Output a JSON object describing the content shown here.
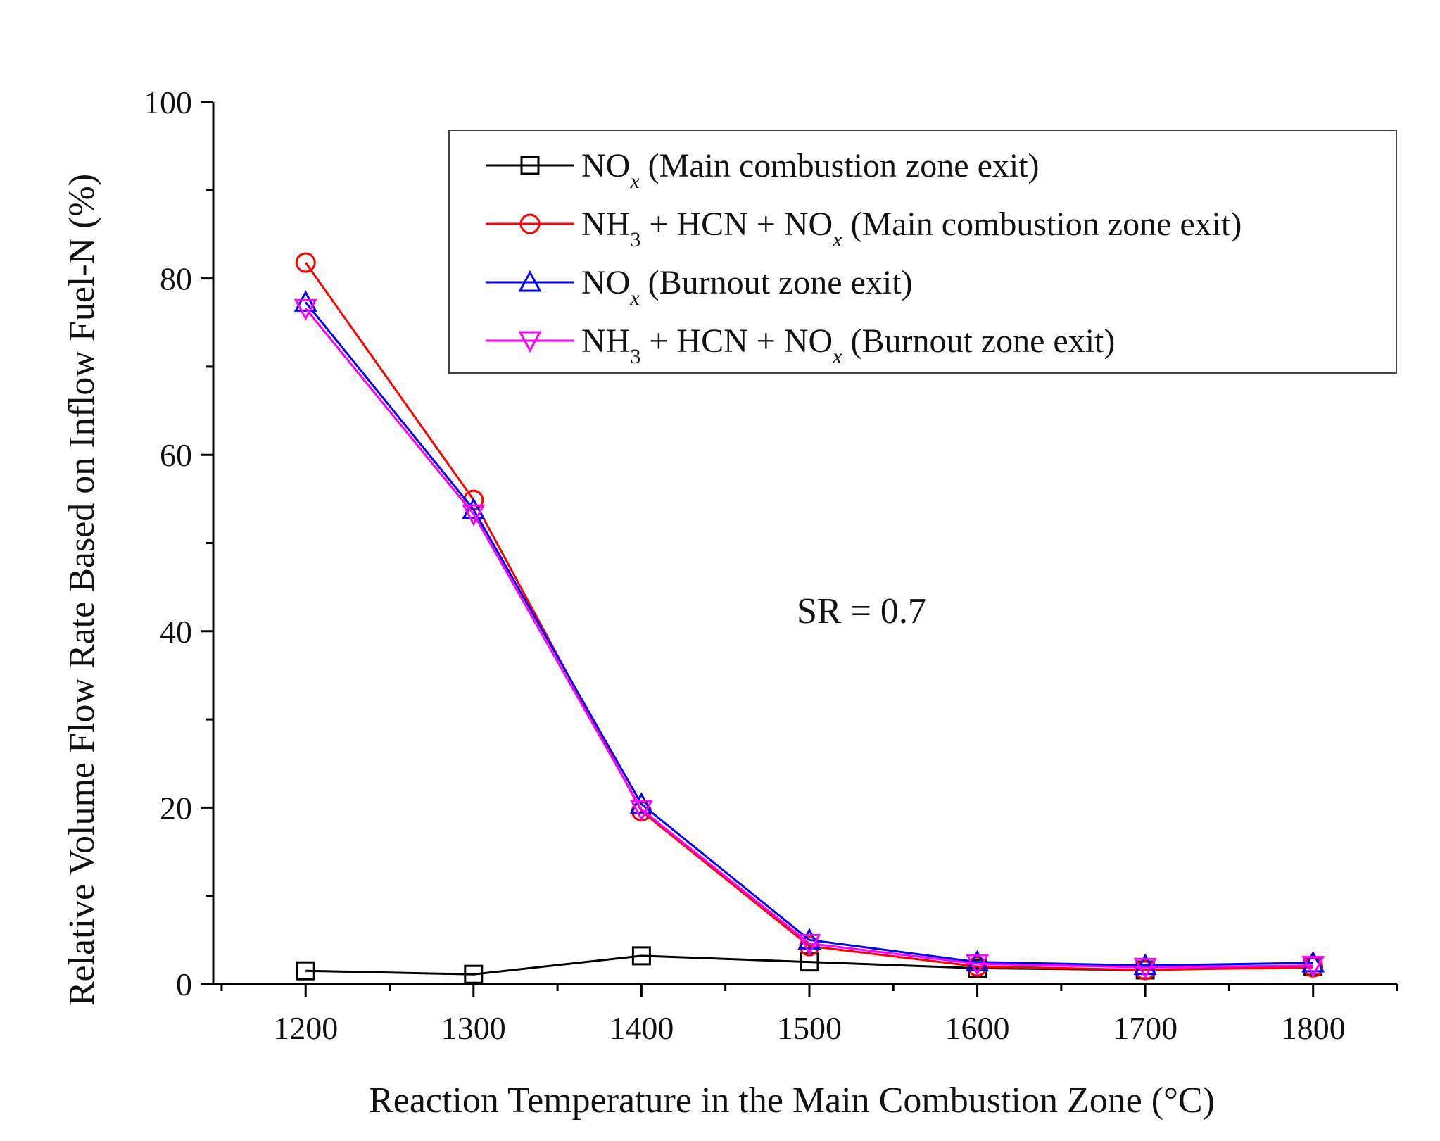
{
  "chart_data": {
    "type": "line",
    "title": "",
    "xlabel": "Reaction Temperature in the Main Combustion Zone (°C)",
    "ylabel": "Relative Volume Flow Rate Based on Inflow Fuel-N (%)",
    "x": [
      1200,
      1300,
      1400,
      1500,
      1600,
      1700,
      1800
    ],
    "xticks": [
      1200,
      1300,
      1400,
      1500,
      1600,
      1700,
      1800
    ],
    "yticks": [
      0,
      20,
      40,
      60,
      80,
      100
    ],
    "xlim": [
      1145,
      1850
    ],
    "ylim": [
      0,
      100
    ],
    "grid": false,
    "annotation": "SR = 0.7",
    "legend_position": "top-right",
    "series": [
      {
        "name": "NOx (Main combustion zone exit)",
        "legend_parts": {
          "pre": "NO",
          "sub1": "x",
          "post": " (Main combustion zone exit)"
        },
        "color": "#000000",
        "marker": "square",
        "values": [
          1.5,
          1.1,
          3.2,
          2.5,
          1.8,
          1.6,
          2.0
        ]
      },
      {
        "name": "NH3 + HCN + NOx (Main combustion zone exit)",
        "legend_parts": {
          "pre": "NH",
          "sub1": "3",
          "mid": " + HCN + NO",
          "sub2": "x",
          "post": " (Main combustion zone exit)"
        },
        "color": "#ff0000",
        "marker": "circle",
        "values": [
          81.8,
          54.9,
          19.6,
          4.3,
          2.0,
          1.6,
          1.9
        ]
      },
      {
        "name": "NOx (Burnout zone exit)",
        "legend_parts": {
          "pre": "NO",
          "sub1": "x",
          "post": " (Burnout zone exit)"
        },
        "color": "#0000ff",
        "marker": "triangle-up",
        "values": [
          77.3,
          53.8,
          20.4,
          5.0,
          2.5,
          2.1,
          2.4
        ]
      },
      {
        "name": "NH3 + HCN + NOx (Burnout zone exit)",
        "legend_parts": {
          "pre": "NH",
          "sub1": "3",
          "mid": " + HCN + NO",
          "sub2": "x",
          "post": " (Burnout zone exit)"
        },
        "color": "#ff00ff",
        "marker": "triangle-down",
        "values": [
          76.6,
          53.3,
          19.8,
          4.6,
          2.3,
          1.9,
          2.1
        ]
      }
    ]
  }
}
